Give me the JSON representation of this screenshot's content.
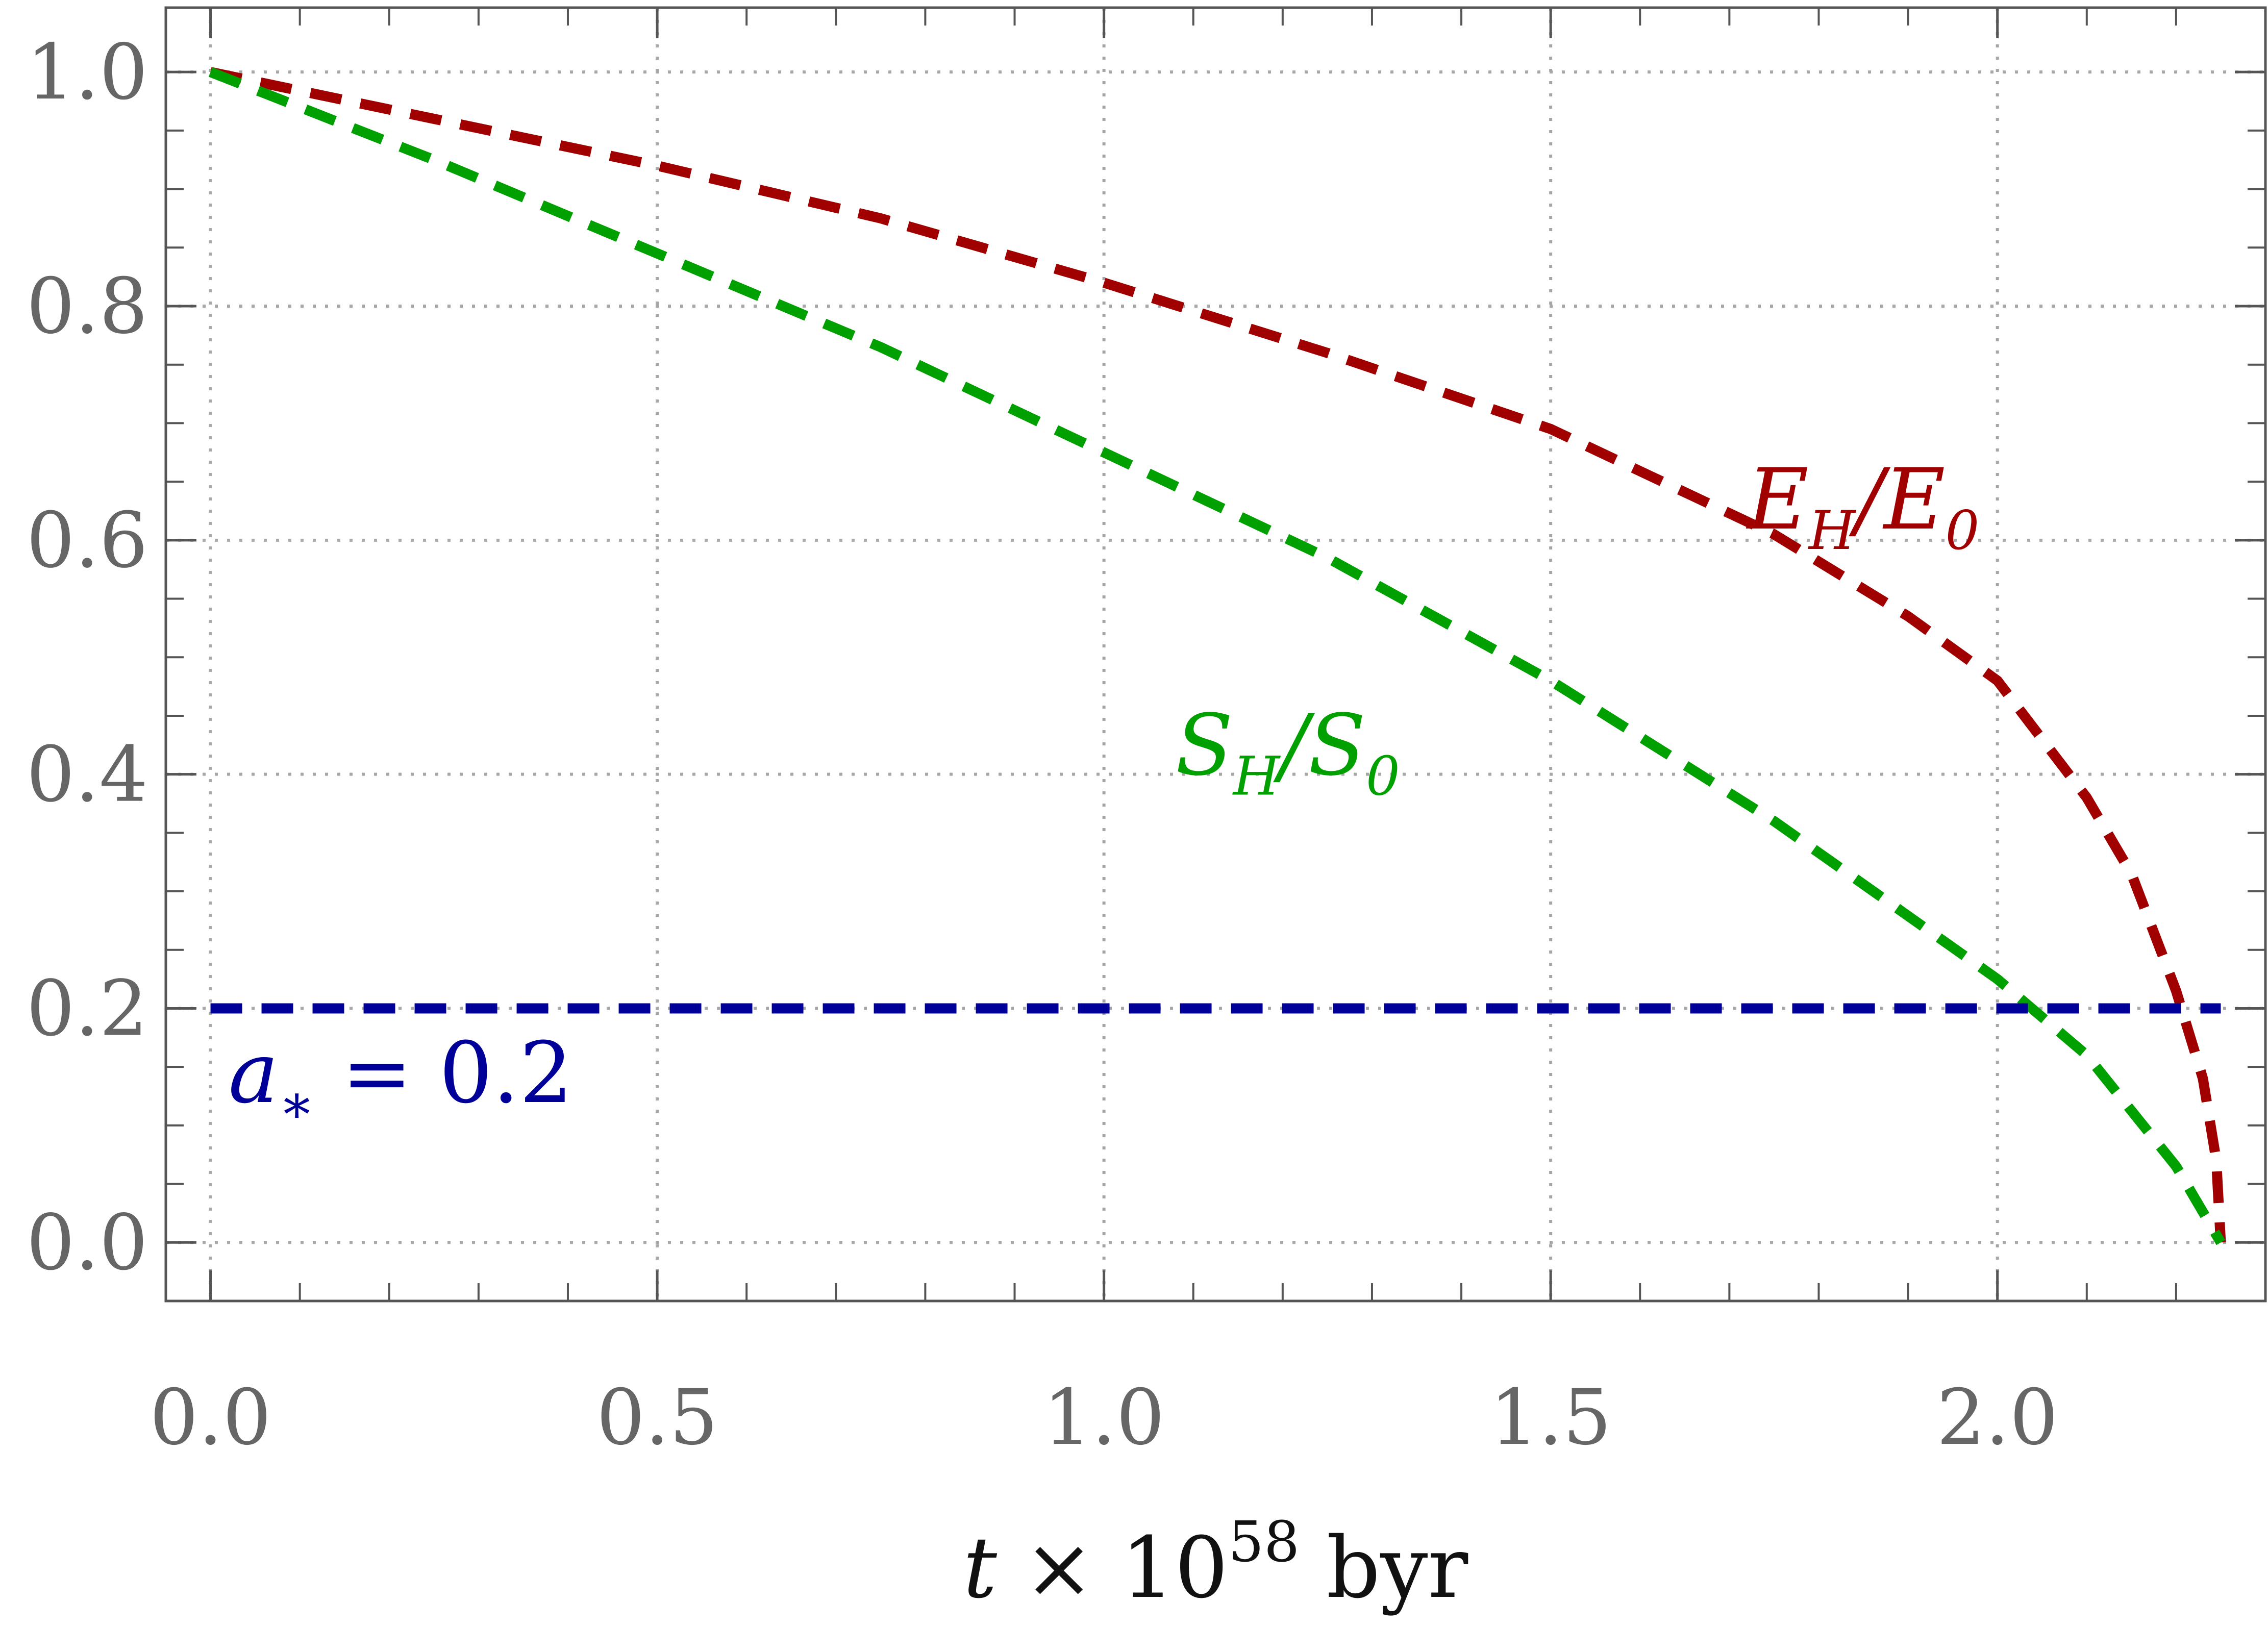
{
  "chart_data": {
    "type": "line",
    "xlabel": {
      "var": "t",
      "times": "×",
      "base": "10",
      "exp": "58",
      "unit": "byr"
    },
    "ylabel": "",
    "xlim": [
      -0.05,
      2.3
    ],
    "ylim": [
      -0.05,
      1.055
    ],
    "x_ticks": [
      0.0,
      0.5,
      1.0,
      1.5,
      2.0
    ],
    "x_tick_labels": [
      "0.0",
      "0.5",
      "1.0",
      "1.5",
      "2.0"
    ],
    "y_ticks": [
      0.0,
      0.2,
      0.4,
      0.6,
      0.8,
      1.0
    ],
    "y_tick_labels": [
      "0.0",
      "0.2",
      "0.4",
      "0.6",
      "0.8",
      "1.0"
    ],
    "grid": true,
    "series": [
      {
        "name": "E_H/E_0",
        "color": "#a00000",
        "x": [
          0.0,
          0.25,
          0.5,
          0.75,
          1.0,
          1.25,
          1.5,
          1.75,
          1.9,
          2.0,
          2.1,
          2.15,
          2.2,
          2.23,
          2.245,
          2.25
        ],
        "y": [
          1.0,
          0.96,
          0.92,
          0.875,
          0.82,
          0.76,
          0.695,
          0.605,
          0.535,
          0.48,
          0.38,
          0.315,
          0.215,
          0.14,
          0.07,
          0.0
        ]
      },
      {
        "name": "S_H/S_0",
        "color": "#00a000",
        "x": [
          0.0,
          0.1,
          0.25,
          0.5,
          0.75,
          1.0,
          1.25,
          1.5,
          1.75,
          2.0,
          2.1,
          2.2,
          2.25
        ],
        "y": [
          1.0,
          0.97,
          0.925,
          0.845,
          0.765,
          0.675,
          0.585,
          0.48,
          0.36,
          0.225,
          0.16,
          0.065,
          0.0
        ]
      },
      {
        "name": "a_* = 0.2",
        "color": "#000099",
        "x": [
          0.0,
          2.25
        ],
        "y": [
          0.2,
          0.2
        ]
      }
    ],
    "annotations": [
      {
        "series": 0,
        "main": "E",
        "sub": "H",
        "slash": "/",
        "main2": "E",
        "sub2": "0",
        "anchor_x": 1.72,
        "anchor_y": 0.61,
        "color": "#a00000"
      },
      {
        "series": 1,
        "main": "S",
        "sub": "H",
        "slash": "/",
        "main2": "S",
        "sub2": "0",
        "anchor_x": 1.08,
        "anchor_y": 0.4,
        "color": "#00a000"
      },
      {
        "series": 2,
        "main": "a",
        "sub": "∗",
        "rest": " = 0.2",
        "anchor_x": 0.02,
        "anchor_y": 0.12,
        "color": "#000099"
      }
    ]
  }
}
